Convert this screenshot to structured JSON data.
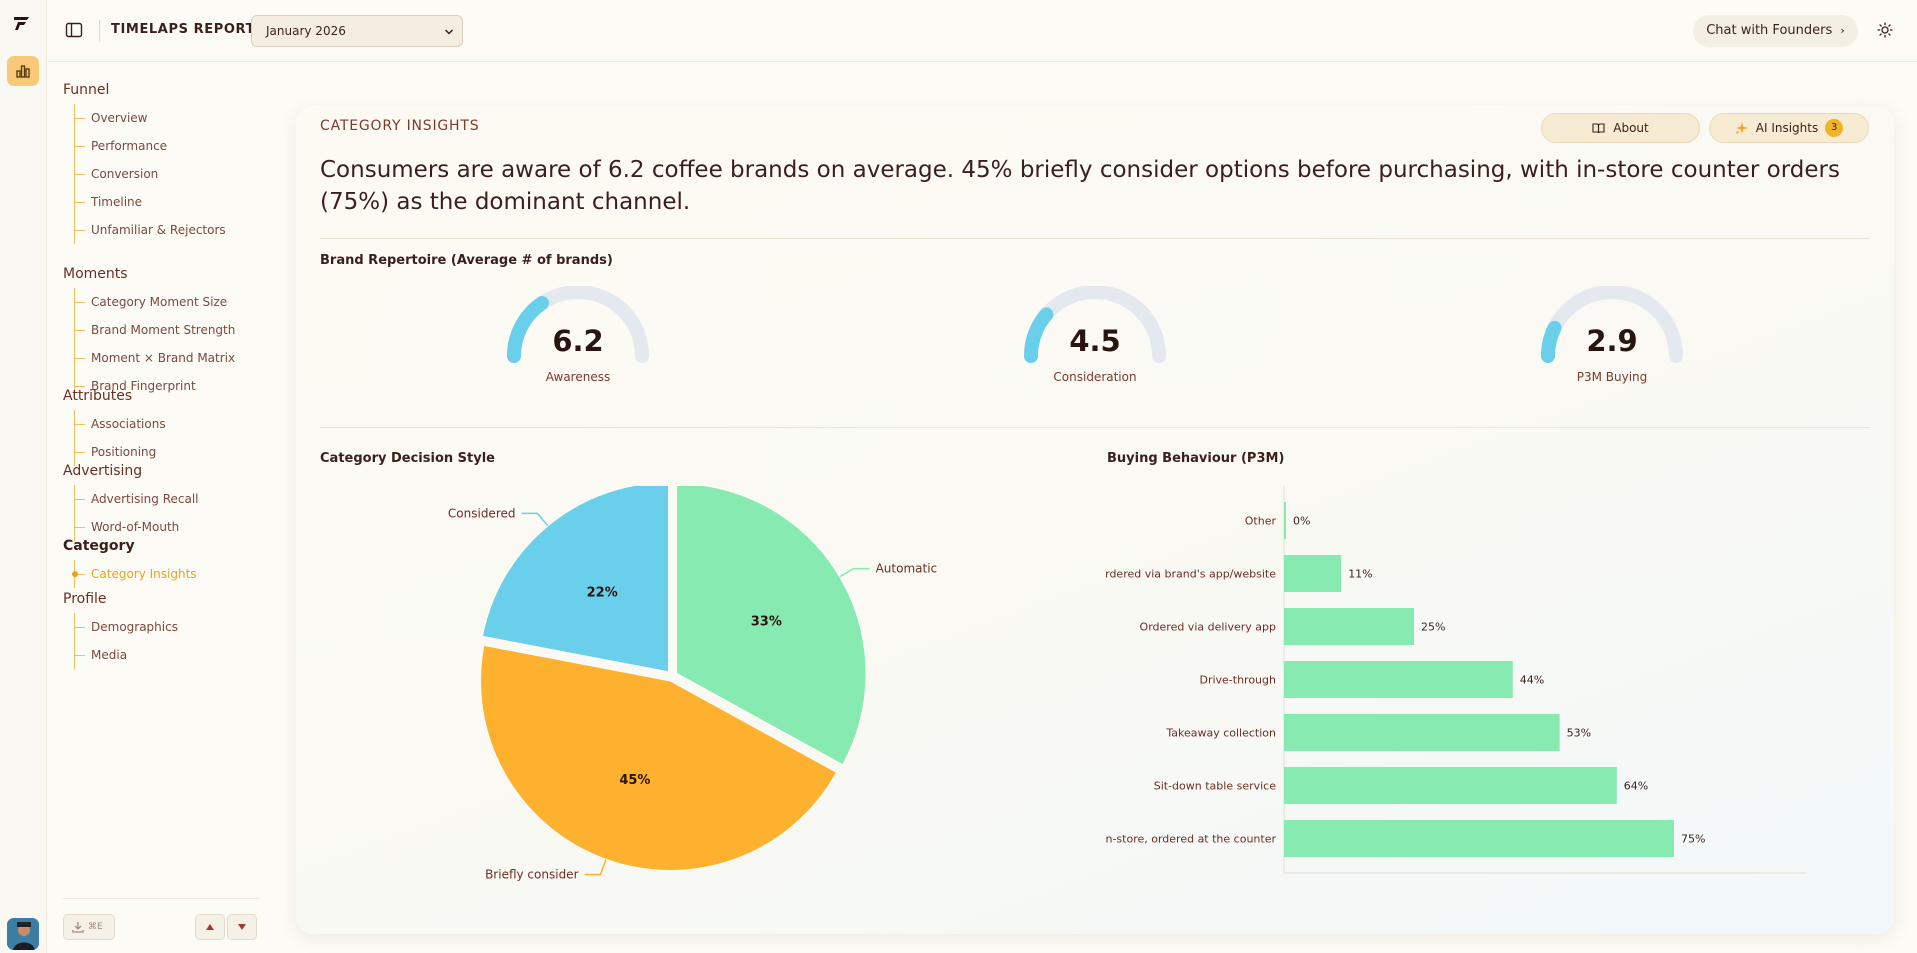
{
  "header": {
    "report_title": "TIMELAPS REPORT",
    "month_selected": "January 2026",
    "chat_label": "Chat with Founders",
    "chat_chevron": "›"
  },
  "sidebar": {
    "sections": [
      {
        "label": "Funnel",
        "items": [
          "Overview",
          "Performance",
          "Conversion",
          "Timeline",
          "Unfamiliar & Rejectors"
        ]
      },
      {
        "label": "Moments",
        "items": [
          "Category Moment Size",
          "Brand Moment Strength",
          "Moment × Brand Matrix",
          "Brand Fingerprint"
        ]
      },
      {
        "label": "Attributes",
        "items": [
          "Associations",
          "Positioning"
        ]
      },
      {
        "label": "Advertising",
        "items": [
          "Advertising Recall",
          "Word-of-Mouth"
        ]
      },
      {
        "label": "Category",
        "items": [
          "Category Insights"
        ]
      },
      {
        "label": "Profile",
        "items": [
          "Demographics",
          "Media"
        ]
      }
    ],
    "active_item": "Category Insights",
    "export_shortcut": "⌘E"
  },
  "card": {
    "title": "CATEGORY INSIGHTS",
    "about_label": "About",
    "ai_label": "AI Insights",
    "ai_count": "3",
    "headline": "Consumers are aware of 6.2 coffee brands on average. 45% briefly consider options before purchasing, with in-store counter orders (75%) as the dominant channel."
  },
  "repertoire": {
    "title": "Brand Repertoire (Average # of brands)",
    "gauge_max": 20,
    "gauges": [
      {
        "value": 6.2,
        "display": "6.2",
        "label": "Awareness"
      },
      {
        "value": 4.5,
        "display": "4.5",
        "label": "Consideration"
      },
      {
        "value": 2.9,
        "display": "2.9",
        "label": "P3M Buying"
      }
    ]
  },
  "colors": {
    "gauge_fill": "#6acfea",
    "gauge_track": "#e3e9ef",
    "considered": "#6acfea",
    "automatic": "#86eab1",
    "briefly": "#fdb12e",
    "bar": "#86eab1"
  },
  "chart_data": [
    {
      "type": "pie",
      "title": "Category Decision Style",
      "slices": [
        {
          "label": "Automatic",
          "value": 33,
          "display": "33%"
        },
        {
          "label": "Briefly consider",
          "value": 45,
          "display": "45%"
        },
        {
          "label": "Considered",
          "value": 22,
          "display": "22%"
        }
      ]
    },
    {
      "type": "bar",
      "orientation": "horizontal",
      "title": "Buying Behaviour (P3M)",
      "categories": [
        "Other",
        "Ordered via brand's app/website",
        "Ordered via delivery app",
        "Drive-through",
        "Takeaway collection",
        "Sit-down table service",
        "In-store, ordered at the counter"
      ],
      "values": [
        0,
        11,
        25,
        44,
        53,
        64,
        75
      ],
      "value_suffix": "%",
      "xlim": [
        0,
        100
      ]
    }
  ]
}
